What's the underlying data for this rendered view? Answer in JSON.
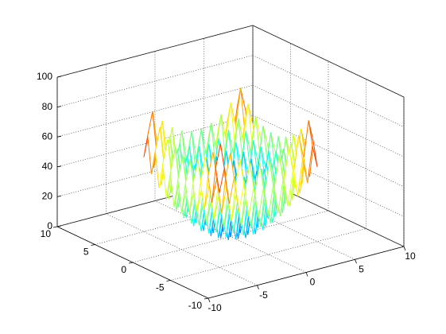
{
  "chart_data": {
    "type": "mesh",
    "colormap": "jet",
    "grid": true,
    "x": [
      -5,
      -4.5,
      -4,
      -3.5,
      -3,
      -2.5,
      -2,
      -1.5,
      -1,
      -0.5,
      0,
      0.5,
      1,
      1.5,
      2,
      2.5,
      3,
      3.5,
      4,
      4.5,
      5
    ],
    "y": [
      -5,
      -4.5,
      -4,
      -3.5,
      -3,
      -2.5,
      -2,
      -1.5,
      -1,
      -0.5,
      0,
      0.5,
      1,
      1.5,
      2,
      2.5,
      3,
      3.5,
      4,
      4.5,
      5
    ],
    "z": [
      [
        50,
        65.25,
        41,
        57.25,
        34,
        51.25,
        29,
        47.25,
        26,
        45.25,
        25,
        45.25,
        26,
        47.25,
        29,
        51.25,
        34,
        57.25,
        41,
        65.25,
        50
      ],
      [
        65.25,
        80.5,
        56.25,
        72.5,
        49.25,
        66.5,
        44.25,
        62.5,
        41.25,
        60.5,
        40.25,
        60.5,
        41.25,
        62.5,
        44.25,
        66.5,
        49.25,
        72.5,
        56.25,
        80.5,
        65.25
      ],
      [
        41,
        56.25,
        32,
        48.25,
        25,
        42.25,
        20,
        38.25,
        17,
        36.25,
        16,
        36.25,
        17,
        38.25,
        20,
        42.25,
        25,
        48.25,
        32,
        56.25,
        41
      ],
      [
        57.25,
        72.5,
        48.25,
        64.5,
        41.25,
        58.5,
        36.25,
        54.5,
        33.25,
        52.5,
        32.25,
        52.5,
        33.25,
        54.5,
        36.25,
        58.5,
        41.25,
        64.5,
        48.25,
        72.5,
        57.25
      ],
      [
        34,
        49.25,
        25,
        41.25,
        18,
        35.25,
        13,
        31.25,
        10,
        29.25,
        9,
        29.25,
        10,
        31.25,
        13,
        35.25,
        18,
        41.25,
        25,
        49.25,
        34
      ],
      [
        51.25,
        66.5,
        42.25,
        58.5,
        35.25,
        52.5,
        30.25,
        48.5,
        27.25,
        46.5,
        26.25,
        46.5,
        27.25,
        48.5,
        30.25,
        52.5,
        35.25,
        58.5,
        42.25,
        66.5,
        51.25
      ],
      [
        29,
        44.25,
        20,
        36.25,
        13,
        30.25,
        8,
        26.25,
        5,
        24.25,
        4,
        24.25,
        5,
        26.25,
        8,
        30.25,
        13,
        36.25,
        20,
        44.25,
        29
      ],
      [
        47.25,
        62.5,
        38.25,
        54.5,
        31.25,
        48.5,
        26.25,
        44.5,
        23.25,
        42.5,
        22.25,
        42.5,
        23.25,
        44.5,
        26.25,
        48.5,
        31.25,
        54.5,
        38.25,
        62.5,
        47.25
      ],
      [
        26,
        41.25,
        17,
        33.25,
        10,
        27.25,
        5,
        23.25,
        2,
        21.25,
        1,
        21.25,
        2,
        23.25,
        5,
        27.25,
        10,
        33.25,
        17,
        41.25,
        26
      ],
      [
        45.25,
        60.5,
        36.25,
        52.5,
        29.25,
        46.5,
        24.25,
        42.5,
        21.25,
        40.5,
        20.25,
        40.5,
        21.25,
        42.5,
        24.25,
        46.5,
        29.25,
        52.5,
        36.25,
        60.5,
        45.25
      ],
      [
        25,
        40.25,
        16,
        32.25,
        9,
        26.25,
        4,
        22.25,
        1,
        20.25,
        0,
        20.25,
        1,
        22.25,
        4,
        26.25,
        9,
        32.25,
        16,
        40.25,
        25
      ],
      [
        45.25,
        60.5,
        36.25,
        52.5,
        29.25,
        46.5,
        24.25,
        42.5,
        21.25,
        40.5,
        20.25,
        40.5,
        21.25,
        42.5,
        24.25,
        46.5,
        29.25,
        52.5,
        36.25,
        60.5,
        45.25
      ],
      [
        26,
        41.25,
        17,
        33.25,
        10,
        27.25,
        5,
        23.25,
        2,
        21.25,
        1,
        21.25,
        2,
        23.25,
        5,
        27.25,
        10,
        33.25,
        17,
        41.25,
        26
      ],
      [
        47.25,
        62.5,
        38.25,
        54.5,
        31.25,
        48.5,
        26.25,
        44.5,
        23.25,
        42.5,
        22.25,
        42.5,
        23.25,
        44.5,
        26.25,
        48.5,
        31.25,
        54.5,
        38.25,
        62.5,
        47.25
      ],
      [
        29,
        44.25,
        20,
        36.25,
        13,
        30.25,
        8,
        26.25,
        5,
        24.25,
        4,
        24.25,
        5,
        26.25,
        8,
        30.25,
        13,
        36.25,
        20,
        44.25,
        29
      ],
      [
        51.25,
        66.5,
        42.25,
        58.5,
        35.25,
        52.5,
        30.25,
        48.5,
        27.25,
        46.5,
        26.25,
        46.5,
        27.25,
        48.5,
        30.25,
        52.5,
        35.25,
        58.5,
        42.25,
        66.5,
        51.25
      ],
      [
        34,
        49.25,
        25,
        41.25,
        18,
        35.25,
        13,
        31.25,
        10,
        29.25,
        9,
        29.25,
        10,
        31.25,
        13,
        35.25,
        18,
        41.25,
        25,
        49.25,
        34
      ],
      [
        57.25,
        72.5,
        48.25,
        64.5,
        41.25,
        58.5,
        36.25,
        54.5,
        33.25,
        52.5,
        32.25,
        52.5,
        33.25,
        54.5,
        36.25,
        58.5,
        41.25,
        64.5,
        48.25,
        72.5,
        57.25
      ],
      [
        41,
        56.25,
        32,
        48.25,
        25,
        42.25,
        20,
        38.25,
        17,
        36.25,
        16,
        36.25,
        17,
        38.25,
        20,
        42.25,
        25,
        48.25,
        32,
        56.25,
        41
      ],
      [
        65.25,
        80.5,
        56.25,
        72.5,
        49.25,
        66.5,
        44.25,
        62.5,
        41.25,
        60.5,
        40.25,
        60.5,
        41.25,
        62.5,
        44.25,
        66.5,
        49.25,
        72.5,
        56.25,
        80.5,
        65.25
      ],
      [
        50,
        65.25,
        41,
        57.25,
        34,
        51.25,
        29,
        47.25,
        26,
        45.25,
        25,
        45.25,
        26,
        47.25,
        29,
        51.25,
        34,
        57.25,
        41,
        65.25,
        50
      ]
    ],
    "xlim": [
      -10,
      10
    ],
    "ylim": [
      -10,
      10
    ],
    "zlim": [
      0,
      100
    ],
    "xticks": [
      -10,
      -5,
      0,
      5,
      10
    ],
    "yticks": [
      -10,
      -5,
      0,
      5,
      10
    ],
    "zticks": [
      0,
      20,
      40,
      60,
      80,
      100
    ]
  }
}
